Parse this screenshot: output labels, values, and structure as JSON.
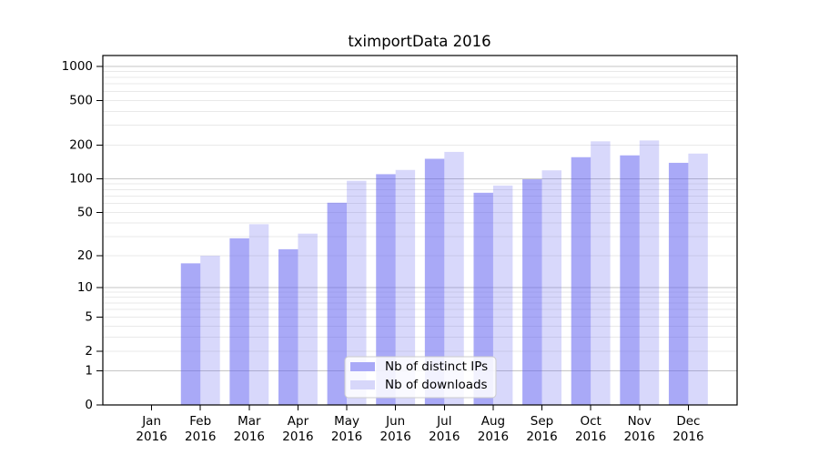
{
  "title": "tximportData 2016",
  "chart_data": {
    "type": "bar",
    "title": "tximportData 2016",
    "categories": [
      "Jan",
      "Feb",
      "Mar",
      "Apr",
      "May",
      "Jun",
      "Jul",
      "Aug",
      "Sep",
      "Oct",
      "Nov",
      "Dec"
    ],
    "x_tick_second_line": "2016",
    "series": [
      {
        "name": "Nb of distinct IPs",
        "values": [
          0,
          17,
          29,
          23,
          61,
          110,
          151,
          75,
          99,
          156,
          162,
          139
        ],
        "fill": "#5a5af0",
        "fill_opacity": 0.52,
        "swatch_color": "#a9a9f7"
      },
      {
        "name": "Nb of downloads",
        "values": [
          0,
          20,
          39,
          32,
          96,
          120,
          174,
          87,
          119,
          216,
          220,
          168
        ],
        "fill": "#5a5af0",
        "fill_opacity": 0.24,
        "swatch_color": "#d7d7fa"
      }
    ],
    "y_scale": "log1p",
    "y_ticks": [
      0,
      1,
      2,
      5,
      10,
      20,
      50,
      100,
      200,
      500,
      1000
    ],
    "ylim": [
      0,
      1250
    ],
    "xlabel": "",
    "ylabel": "",
    "grid": true,
    "legend_position": "lower center",
    "colors": {
      "major_grid": "#c6c6c6",
      "minor_grid": "#e9e9e9",
      "spine": "#000000",
      "tick": "#000000",
      "legend_border": "#cccccc",
      "legend_background": "#ffffff",
      "background": "#ffffff"
    }
  }
}
